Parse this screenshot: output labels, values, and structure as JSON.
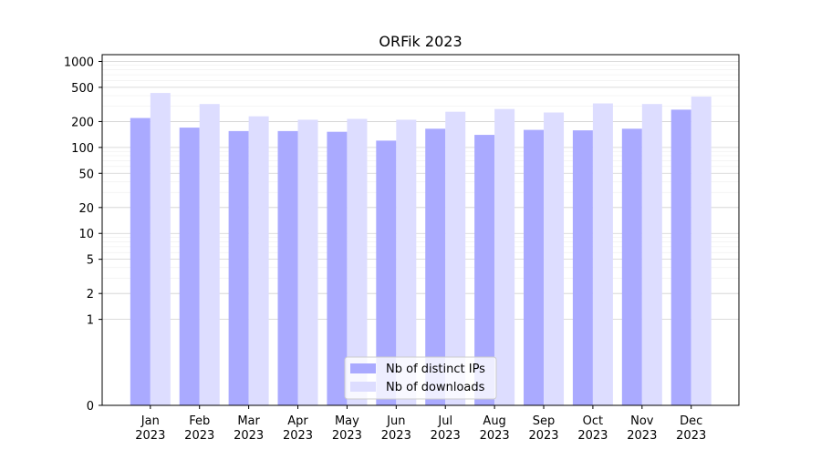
{
  "chart_data": {
    "type": "bar",
    "title": "ORFik 2023",
    "xlabel": "",
    "ylabel": "",
    "yscale": "symlog",
    "ylim": [
      0,
      1200
    ],
    "yticks": [
      0,
      1,
      2,
      5,
      10,
      20,
      50,
      100,
      200,
      500,
      1000
    ],
    "ytick_labels": [
      "0",
      "1",
      "2",
      "5",
      "10",
      "20",
      "50",
      "100",
      "200",
      "500",
      "1000"
    ],
    "categories": [
      [
        "Jan",
        "2023"
      ],
      [
        "Feb",
        "2023"
      ],
      [
        "Mar",
        "2023"
      ],
      [
        "Apr",
        "2023"
      ],
      [
        "May",
        "2023"
      ],
      [
        "Jun",
        "2023"
      ],
      [
        "Jul",
        "2023"
      ],
      [
        "Aug",
        "2023"
      ],
      [
        "Sep",
        "2023"
      ],
      [
        "Oct",
        "2023"
      ],
      [
        "Nov",
        "2023"
      ],
      [
        "Dec",
        "2023"
      ]
    ],
    "series": [
      {
        "name": "Nb of distinct IPs",
        "color": "#aaaaff",
        "values": [
          220,
          170,
          155,
          155,
          152,
          120,
          165,
          140,
          160,
          158,
          165,
          275
        ]
      },
      {
        "name": "Nb of downloads",
        "color": "#ddddff",
        "values": [
          430,
          320,
          230,
          210,
          215,
          210,
          260,
          280,
          255,
          325,
          320,
          390
        ]
      }
    ],
    "grid": true,
    "legend_position": "lower center"
  }
}
